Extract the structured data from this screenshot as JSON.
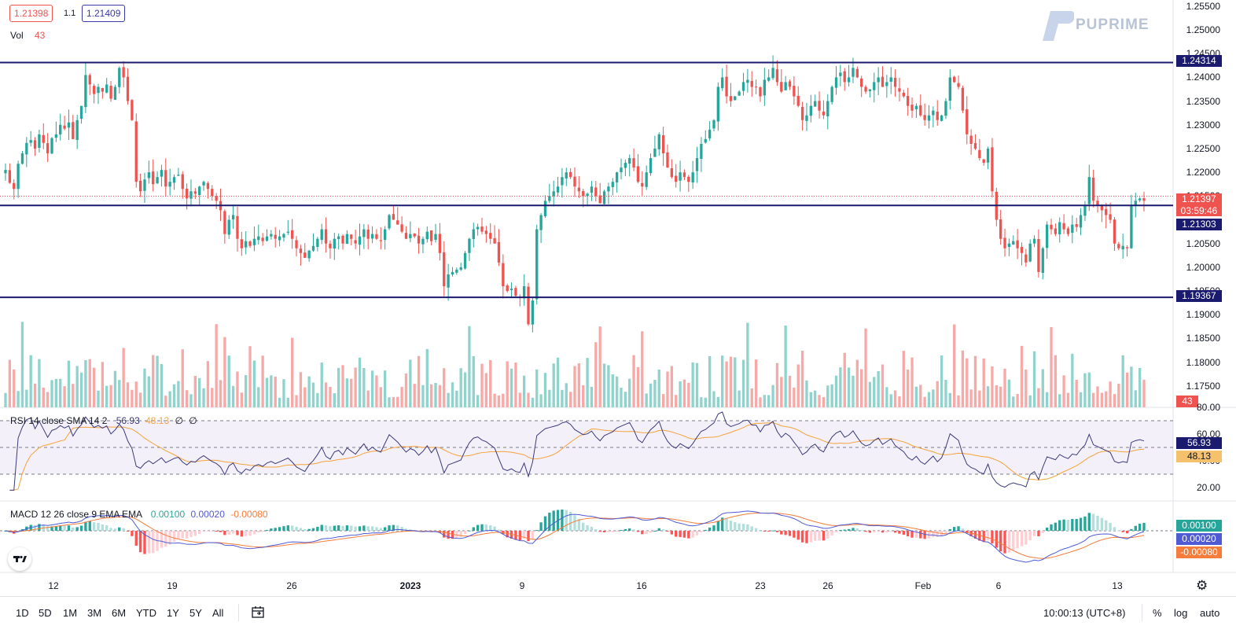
{
  "header": {
    "bid": "1.21398",
    "spread": "1.1",
    "ask": "1.21409",
    "vol_label": "Vol",
    "vol_value": "43"
  },
  "logo": {
    "text": "PUPRIME"
  },
  "colors": {
    "up": "#26a69a",
    "down": "#ef5350",
    "line": "#1a1a6e",
    "rsi": "#3a3a7a",
    "rsi_sma": "#f5a23c",
    "macd": "#4f5bd5",
    "signal": "#f57c3a"
  },
  "price_axis": {
    "ticks": [
      "1.25500",
      "1.25000",
      "1.24500",
      "1.24000",
      "1.23500",
      "1.23000",
      "1.22500",
      "1.22000",
      "1.21500",
      "1.20500",
      "1.20000",
      "1.19500",
      "1.19000",
      "1.18500",
      "1.18000",
      "1.17500"
    ],
    "range": [
      1.1705,
      1.2563
    ]
  },
  "levels": [
    {
      "price": 1.24314,
      "label": "1.24314"
    },
    {
      "price": 1.21303,
      "label": "1.21303"
    },
    {
      "price": 1.19367,
      "label": "1.19367"
    }
  ],
  "current": {
    "price": "1.21397",
    "countdown": "03:59:46",
    "volume": "43"
  },
  "rsi": {
    "legend": "RSI 14 close SMA 14 2",
    "value": "56.93",
    "sma": "48.13",
    "extra1": "∅",
    "extra2": "∅",
    "ticks": [
      "80.00",
      "60.00",
      "40.00",
      "20.00"
    ]
  },
  "macd": {
    "legend": "MACD 12 26 close 9 EMA EMA",
    "hist": "0.00100",
    "macd": "0.00020",
    "signal": "-0.00080"
  },
  "x_axis": [
    "12",
    "19",
    "26",
    "2023",
    "9",
    "16",
    "23",
    "26",
    "Feb",
    "6",
    "13"
  ],
  "toolbar": {
    "ranges": [
      "1D",
      "5D",
      "1M",
      "3M",
      "6M",
      "YTD",
      "1Y",
      "5Y",
      "All"
    ],
    "time": "10:00:13 (UTC+8)",
    "percent": "%",
    "log": "log",
    "auto": "auto"
  },
  "chart_data": {
    "type": "candlestick",
    "symbol_quote": {
      "bid": 1.21398,
      "ask": 1.21409
    },
    "ylim": [
      1.1705,
      1.2563
    ],
    "horizontal_levels": [
      1.24314,
      1.21303,
      1.19367
    ],
    "closes": [
      1.2205,
      1.2178,
      1.2165,
      1.2218,
      1.224,
      1.2262,
      1.2268,
      1.225,
      1.228,
      1.2262,
      1.224,
      1.2272,
      1.228,
      1.23,
      1.2292,
      1.2305,
      1.227,
      1.231,
      1.234,
      1.2405,
      1.2385,
      1.2365,
      1.238,
      1.237,
      1.2385,
      1.2355,
      1.238,
      1.242,
      1.24,
      1.235,
      1.231,
      1.218,
      1.216,
      1.2185,
      1.22,
      1.2175,
      1.219,
      1.2205,
      1.217,
      1.218,
      1.219,
      1.2195,
      1.2165,
      1.2145,
      1.216,
      1.2155,
      1.217,
      1.218,
      1.2165,
      1.215,
      1.214,
      1.212,
      1.207,
      1.21,
      1.211,
      1.206,
      1.204,
      1.2055,
      1.2045,
      1.206,
      1.2065,
      1.2055,
      1.2065,
      1.207,
      1.206,
      1.2065,
      1.207,
      1.2075,
      1.206,
      1.204,
      1.203,
      1.202,
      1.2035,
      1.2045,
      1.206,
      1.208,
      1.205,
      1.204,
      1.206,
      1.2065,
      1.205,
      1.207,
      1.206,
      1.205,
      1.2065,
      1.208,
      1.206,
      1.207,
      1.206,
      1.2055,
      1.208,
      1.211,
      1.21,
      1.209,
      1.2075,
      1.206,
      1.207,
      1.2065,
      1.205,
      1.206,
      1.2075,
      1.2055,
      1.207,
      1.203,
      1.196,
      1.1985,
      1.199,
      1.1995,
      1.2,
      1.203,
      1.206,
      1.208,
      1.2085,
      1.2075,
      1.207,
      1.206,
      1.205,
      1.201,
      1.196,
      1.195,
      1.1955,
      1.194,
      1.1935,
      1.196,
      1.188,
      1.193,
      1.208,
      1.211,
      1.214,
      1.215,
      1.216,
      1.217,
      1.219,
      1.22,
      1.219,
      1.217,
      1.216,
      1.215,
      1.2155,
      1.217,
      1.215,
      1.2135,
      1.216,
      1.217,
      1.218,
      1.22,
      1.221,
      1.222,
      1.223,
      1.221,
      1.218,
      1.217,
      1.22,
      1.223,
      1.225,
      1.228,
      1.224,
      1.221,
      1.219,
      1.218,
      1.22,
      1.219,
      1.218,
      1.22,
      1.223,
      1.226,
      1.227,
      1.229,
      1.231,
      1.238,
      1.24,
      1.236,
      1.235,
      1.236,
      1.237,
      1.239,
      1.2395,
      1.238,
      1.238,
      1.236,
      1.2395,
      1.24,
      1.242,
      1.239,
      1.237,
      1.239,
      1.238,
      1.236,
      1.234,
      1.231,
      1.232,
      1.234,
      1.235,
      1.233,
      1.232,
      1.235,
      1.238,
      1.24,
      1.241,
      1.239,
      1.24,
      1.242,
      1.24,
      1.238,
      1.237,
      1.2375,
      1.239,
      1.24,
      1.238,
      1.239,
      1.24,
      1.238,
      1.237,
      1.236,
      1.234,
      1.233,
      1.234,
      1.232,
      1.231,
      1.232,
      1.233,
      1.231,
      1.232,
      1.235,
      1.24,
      1.239,
      1.238,
      1.233,
      1.228,
      1.226,
      1.225,
      1.223,
      1.222,
      1.225,
      1.216,
      1.21,
      1.206,
      1.204,
      1.205,
      1.2055,
      1.204,
      1.203,
      1.201,
      1.205,
      1.206,
      1.199,
      1.204,
      1.209,
      1.208,
      1.207,
      1.2095,
      1.208,
      1.207,
      1.209,
      1.2085,
      1.211,
      1.213,
      1.219,
      1.214,
      1.213,
      1.212,
      1.211,
      1.21,
      1.205,
      1.204,
      1.2045,
      1.204,
      1.213,
      1.214,
      1.2145,
      1.214
    ],
    "current_price": 1.21397,
    "volume_last": 43,
    "rsi": {
      "period": 14,
      "sma_period": 14,
      "value": 56.93,
      "sma": 48.13,
      "ylim": [
        10,
        80
      ],
      "bands": [
        70,
        50,
        30
      ]
    },
    "macd": {
      "fast": 12,
      "slow": 26,
      "signal": 9,
      "histogram": 0.001,
      "macd": 0.0002,
      "signal_value": -0.0008
    },
    "x_labels": [
      "12",
      "19",
      "26",
      "2023",
      "9",
      "16",
      "23",
      "26",
      "Feb",
      "6",
      "13"
    ]
  }
}
